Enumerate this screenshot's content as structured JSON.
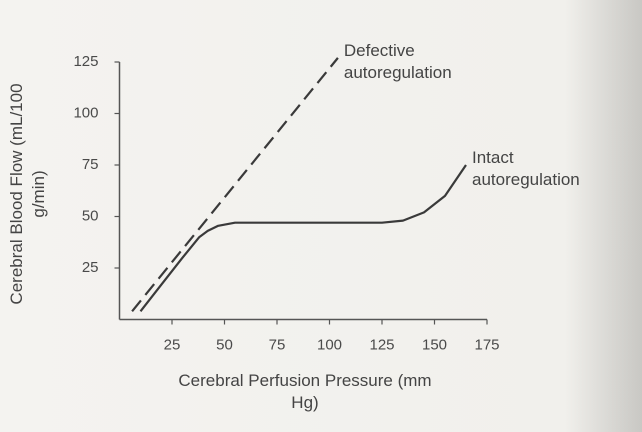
{
  "chart_data": {
    "type": "line",
    "xlabel": "Cerebral Perfusion Pressure (mm Hg)",
    "ylabel": "Cerebral Blood Flow (mL/100 g/min)",
    "xlim": [
      0,
      175
    ],
    "xticks": [
      25,
      50,
      75,
      100,
      125,
      150,
      175
    ],
    "ylim": [
      0,
      125
    ],
    "yticks": [
      25,
      50,
      75,
      100,
      125
    ],
    "grid": false,
    "series": [
      {
        "name": "Defective autoregulation",
        "color": "#3a3a3a",
        "dashed": true,
        "x": [
          6,
          104
        ],
        "values": [
          4,
          127
        ]
      },
      {
        "name": "Intact autoregulation",
        "color": "#3a3a3a",
        "dashed": false,
        "x": [
          10,
          20,
          30,
          38,
          42,
          47,
          55,
          75,
          100,
          125,
          135,
          145,
          155,
          165
        ],
        "values": [
          4,
          17,
          30,
          40,
          43,
          45.5,
          47,
          47,
          47,
          47,
          48,
          52,
          60,
          75
        ]
      }
    ]
  }
}
